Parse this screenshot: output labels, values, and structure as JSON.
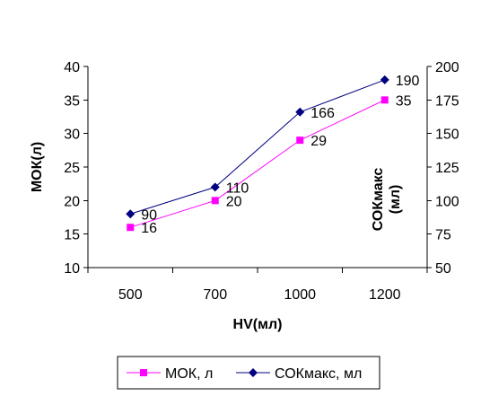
{
  "chart_data": {
    "type": "line",
    "dual_axis": true,
    "categories": [
      "500",
      "700",
      "1000",
      "1200"
    ],
    "xlabel": "HV(мл)",
    "ylabel_left": "МОК(л)",
    "ylabel_right": "СОКмакс (мл)",
    "ylim_left": [
      10,
      40
    ],
    "ylim_right": [
      50,
      200
    ],
    "yticks_left": [
      10,
      15,
      20,
      25,
      30,
      35,
      40
    ],
    "yticks_right": [
      50,
      75,
      100,
      125,
      150,
      175,
      200
    ],
    "grid": false,
    "legend_position": "bottom",
    "series": [
      {
        "name": "МОК, л",
        "axis": "left",
        "color": "#ff00ff",
        "marker": "square",
        "values": [
          16,
          20,
          29,
          35
        ],
        "labels": [
          "16",
          "20",
          "29",
          "35"
        ]
      },
      {
        "name": "СОКмакс, мл",
        "axis": "right",
        "color": "#000080",
        "marker": "diamond",
        "values": [
          90,
          110,
          166,
          190
        ],
        "labels": [
          "90",
          "110",
          "166",
          "190"
        ]
      }
    ]
  }
}
